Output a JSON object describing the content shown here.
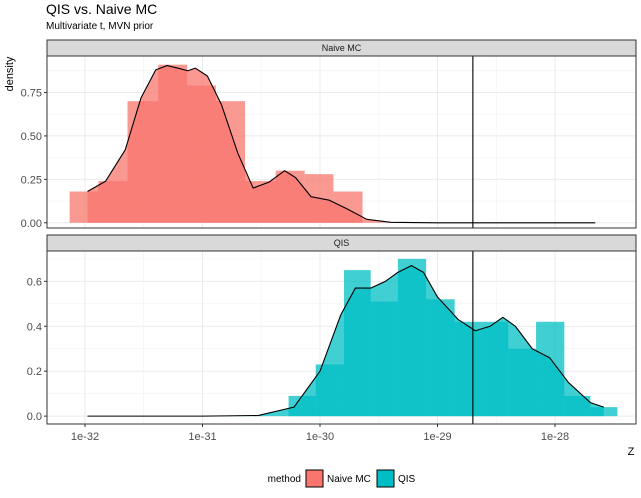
{
  "chart_data": {
    "type": "histogram-density",
    "title": "QIS vs. Naive MC",
    "subtitle": "Multivariate t, MVN prior",
    "xlabel": "Z",
    "ylabel": "density",
    "x_scale": "log10",
    "x_ticks": [
      {
        "value": 1e-32,
        "label": "1e-32"
      },
      {
        "value": 1e-31,
        "label": "1e-31"
      },
      {
        "value": 1e-30,
        "label": "1e-30"
      },
      {
        "value": 1e-29,
        "label": "1e-29"
      },
      {
        "value": 1e-28,
        "label": "1e-28"
      }
    ],
    "vline": 2e-29,
    "colors": {
      "Naive MC": "#F8766D",
      "QIS": "#00BFC4"
    },
    "legend": {
      "title": "method",
      "position": "bottom",
      "entries": [
        "Naive MC",
        "QIS"
      ]
    },
    "panels": [
      {
        "strip": "Naive MC",
        "method": "Naive MC",
        "ylim": [
          -0.03,
          0.96
        ],
        "y_ticks": [
          {
            "value": 0,
            "label": "0.00"
          },
          {
            "value": 0.25,
            "label": "0.25"
          },
          {
            "value": 0.5,
            "label": "0.50"
          },
          {
            "value": 0.75,
            "label": "0.75"
          }
        ],
        "bins": [
          {
            "from": 7.4e-33,
            "to": 1.3e-32,
            "density": 0.18
          },
          {
            "from": 1.3e-32,
            "to": 2.3e-32,
            "density": 0.24
          },
          {
            "from": 2.3e-32,
            "to": 4.2e-32,
            "density": 0.7
          },
          {
            "from": 4.2e-32,
            "to": 7.4e-32,
            "density": 0.91
          },
          {
            "from": 7.4e-32,
            "to": 1.3e-31,
            "density": 0.79
          },
          {
            "from": 1.3e-31,
            "to": 2.3e-31,
            "density": 0.7
          },
          {
            "from": 2.3e-31,
            "to": 4.2e-31,
            "density": 0.24
          },
          {
            "from": 4.2e-31,
            "to": 7.4e-31,
            "density": 0.3
          },
          {
            "from": 7.4e-31,
            "to": 1.3e-30,
            "density": 0.28
          },
          {
            "from": 1.3e-30,
            "to": 2.3e-30,
            "density": 0.18
          }
        ],
        "density_curve": [
          [
            1.05e-32,
            0.18
          ],
          [
            1.5e-32,
            0.24
          ],
          [
            2.2e-32,
            0.42
          ],
          [
            3e-32,
            0.72
          ],
          [
            4e-32,
            0.88
          ],
          [
            5e-32,
            0.905
          ],
          [
            6.2e-32,
            0.89
          ],
          [
            7.5e-32,
            0.875
          ],
          [
            8.7e-32,
            0.89
          ],
          [
            1.1e-31,
            0.845
          ],
          [
            1.45e-31,
            0.68
          ],
          [
            2e-31,
            0.4
          ],
          [
            2.7e-31,
            0.2
          ],
          [
            3.7e-31,
            0.235
          ],
          [
            5e-31,
            0.3
          ],
          [
            6.2e-31,
            0.26
          ],
          [
            8.4e-31,
            0.15
          ],
          [
            1.2e-30,
            0.13
          ],
          [
            1.7e-30,
            0.08
          ],
          [
            2.5e-30,
            0.02
          ],
          [
            4e-30,
            0.003
          ],
          [
            1e-29,
            0.0
          ],
          [
            1e-28,
            0.0
          ],
          [
            2.2e-28,
            0.0
          ]
        ]
      },
      {
        "strip": "QIS",
        "method": "QIS",
        "ylim": [
          -0.035,
          0.735
        ],
        "y_ticks": [
          {
            "value": 0,
            "label": "0.0"
          },
          {
            "value": 0.2,
            "label": "0.2"
          },
          {
            "value": 0.4,
            "label": "0.4"
          },
          {
            "value": 0.6,
            "label": "0.6"
          }
        ],
        "bins": [
          {
            "from": 5.4e-31,
            "to": 9.2e-31,
            "density": 0.09
          },
          {
            "from": 9.2e-31,
            "to": 1.6e-30,
            "density": 0.23
          },
          {
            "from": 1.6e-30,
            "to": 2.7e-30,
            "density": 0.65
          },
          {
            "from": 2.7e-30,
            "to": 4.6e-30,
            "density": 0.51
          },
          {
            "from": 4.6e-30,
            "to": 8e-30,
            "density": 0.7
          },
          {
            "from": 8e-30,
            "to": 1.4e-29,
            "density": 0.52
          },
          {
            "from": 1.4e-29,
            "to": 2.35e-29,
            "density": 0.42
          },
          {
            "from": 2.35e-29,
            "to": 4e-29,
            "density": 0.42
          },
          {
            "from": 4e-29,
            "to": 6.9e-29,
            "density": 0.3
          },
          {
            "from": 6.9e-29,
            "to": 1.2e-28,
            "density": 0.42
          },
          {
            "from": 1.2e-28,
            "to": 2e-28,
            "density": 0.09
          },
          {
            "from": 2e-28,
            "to": 3.4e-28,
            "density": 0.04
          }
        ],
        "density_curve": [
          [
            1.05e-32,
            0.0
          ],
          [
            1e-31,
            0.0
          ],
          [
            3e-31,
            0.003
          ],
          [
            6e-31,
            0.04
          ],
          [
            1e-30,
            0.2
          ],
          [
            1.5e-30,
            0.45
          ],
          [
            2e-30,
            0.57
          ],
          [
            2.7e-30,
            0.57
          ],
          [
            3.6e-30,
            0.6
          ],
          [
            4.6e-30,
            0.64
          ],
          [
            6e-30,
            0.67
          ],
          [
            7.6e-30,
            0.64
          ],
          [
            1e-29,
            0.53
          ],
          [
            1.5e-29,
            0.43
          ],
          [
            2.1e-29,
            0.38
          ],
          [
            2.8e-29,
            0.4
          ],
          [
            3.6e-29,
            0.44
          ],
          [
            4.6e-29,
            0.4
          ],
          [
            6.4e-29,
            0.3
          ],
          [
            9e-29,
            0.26
          ],
          [
            1.3e-28,
            0.15
          ],
          [
            2e-28,
            0.06
          ],
          [
            2.6e-28,
            0.04
          ]
        ]
      }
    ]
  }
}
